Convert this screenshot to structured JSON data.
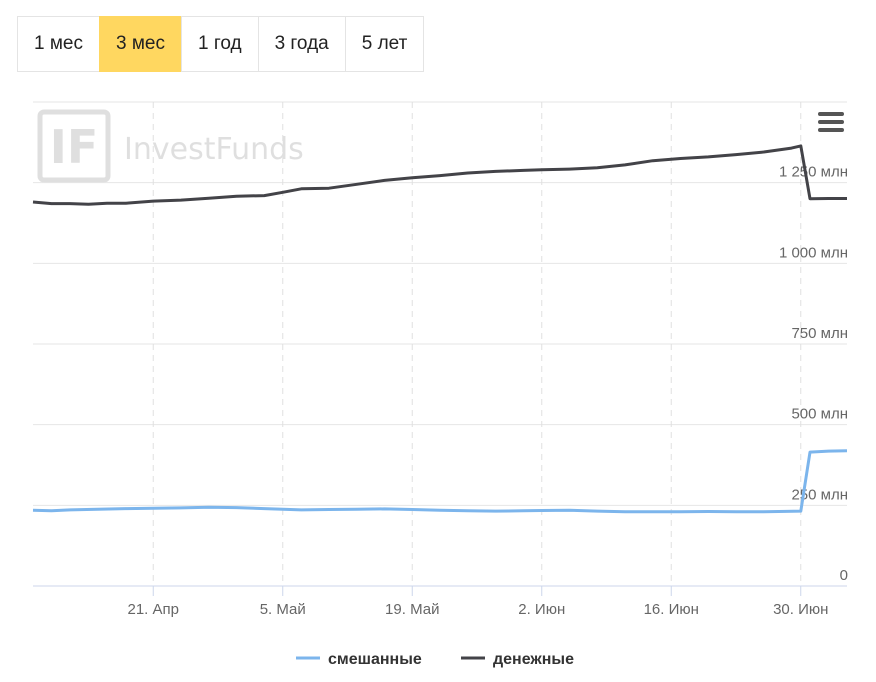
{
  "periods": {
    "items": [
      {
        "label": "1 мес",
        "active": false
      },
      {
        "label": "3 мес",
        "active": true
      },
      {
        "label": "1 год",
        "active": false
      },
      {
        "label": "3 года",
        "active": false
      },
      {
        "label": "5 лет",
        "active": false
      }
    ]
  },
  "watermark": {
    "text": "InvestFunds",
    "logo": "IF"
  },
  "menu": {
    "icon": "menu-icon"
  },
  "colors": {
    "mixed": "#7cb5ec",
    "money": "#434348",
    "active_period": "#ffd760"
  },
  "chart_data": {
    "type": "line",
    "x_ticks": [
      "21. Апр",
      "5. Май",
      "19. Май",
      "2. Июн",
      "16. Июн",
      "30. Июн"
    ],
    "y_ticks": [
      "0",
      "250 млн",
      "500 млн",
      "750 млн",
      "1 000 млн",
      "1 250 млн"
    ],
    "ylim": [
      0,
      1500
    ],
    "grid": true,
    "legend_position": "bottom-center",
    "x_start": "2024-04-08",
    "x_end": "2024-07-05",
    "series": [
      {
        "name": "смешанные",
        "color": "#7cb5ec",
        "points": [
          [
            "2024-04-08",
            235
          ],
          [
            "2024-04-10",
            233
          ],
          [
            "2024-04-12",
            236
          ],
          [
            "2024-04-15",
            238
          ],
          [
            "2024-04-18",
            240
          ],
          [
            "2024-04-21",
            241
          ],
          [
            "2024-04-24",
            242
          ],
          [
            "2024-04-27",
            244
          ],
          [
            "2024-04-30",
            243
          ],
          [
            "2024-05-03",
            240
          ],
          [
            "2024-05-05",
            238
          ],
          [
            "2024-05-07",
            236
          ],
          [
            "2024-05-10",
            237
          ],
          [
            "2024-05-13",
            238
          ],
          [
            "2024-05-16",
            239
          ],
          [
            "2024-05-19",
            237
          ],
          [
            "2024-05-22",
            235
          ],
          [
            "2024-05-25",
            233
          ],
          [
            "2024-05-28",
            232
          ],
          [
            "2024-05-31",
            233
          ],
          [
            "2024-06-02",
            234
          ],
          [
            "2024-06-05",
            235
          ],
          [
            "2024-06-08",
            232
          ],
          [
            "2024-06-11",
            230
          ],
          [
            "2024-06-14",
            230
          ],
          [
            "2024-06-17",
            230
          ],
          [
            "2024-06-20",
            231
          ],
          [
            "2024-06-23",
            230
          ],
          [
            "2024-06-26",
            230
          ],
          [
            "2024-06-30",
            232
          ],
          [
            "2024-07-01",
            415
          ],
          [
            "2024-07-03",
            418
          ],
          [
            "2024-07-05",
            419
          ]
        ]
      },
      {
        "name": "денежные",
        "color": "#434348",
        "points": [
          [
            "2024-04-08",
            1190
          ],
          [
            "2024-04-10",
            1185
          ],
          [
            "2024-04-12",
            1185
          ],
          [
            "2024-04-14",
            1183
          ],
          [
            "2024-04-16",
            1186
          ],
          [
            "2024-04-18",
            1186
          ],
          [
            "2024-04-21",
            1193
          ],
          [
            "2024-04-24",
            1196
          ],
          [
            "2024-04-27",
            1202
          ],
          [
            "2024-04-30",
            1208
          ],
          [
            "2024-05-03",
            1210
          ],
          [
            "2024-05-05",
            1220
          ],
          [
            "2024-05-07",
            1231
          ],
          [
            "2024-05-10",
            1233
          ],
          [
            "2024-05-13",
            1245
          ],
          [
            "2024-05-16",
            1257
          ],
          [
            "2024-05-19",
            1265
          ],
          [
            "2024-05-22",
            1272
          ],
          [
            "2024-05-25",
            1280
          ],
          [
            "2024-05-28",
            1285
          ],
          [
            "2024-05-31",
            1288
          ],
          [
            "2024-06-02",
            1290
          ],
          [
            "2024-06-05",
            1292
          ],
          [
            "2024-06-08",
            1296
          ],
          [
            "2024-06-11",
            1305
          ],
          [
            "2024-06-14",
            1318
          ],
          [
            "2024-06-17",
            1325
          ],
          [
            "2024-06-20",
            1330
          ],
          [
            "2024-06-23",
            1337
          ],
          [
            "2024-06-26",
            1345
          ],
          [
            "2024-06-29",
            1357
          ],
          [
            "2024-06-30",
            1364
          ],
          [
            "2024-07-01",
            1200
          ],
          [
            "2024-07-03",
            1201
          ],
          [
            "2024-07-05",
            1201
          ]
        ]
      }
    ]
  }
}
